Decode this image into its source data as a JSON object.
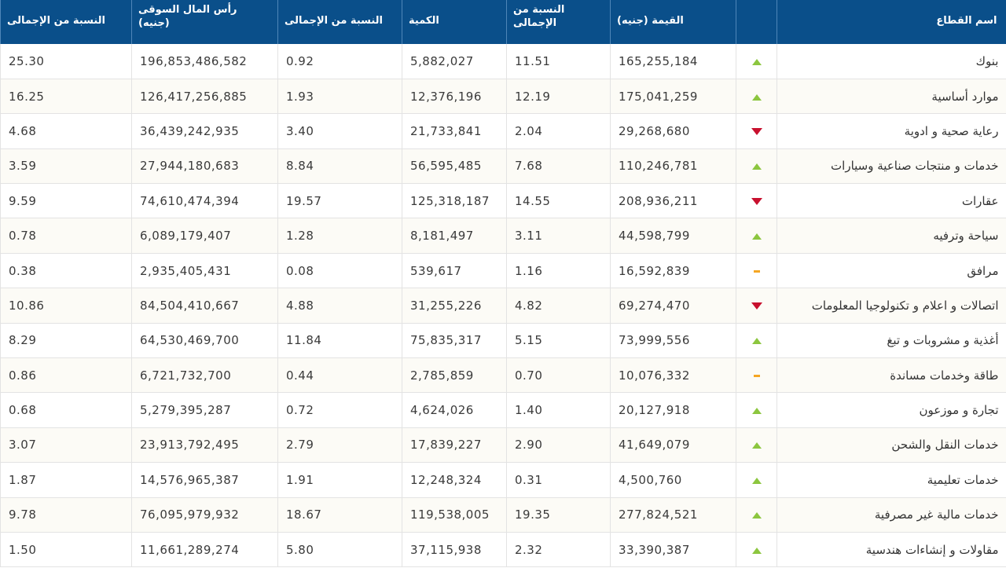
{
  "colors": {
    "header_bg": "#0a4f8a",
    "up": "#8cc63f",
    "down": "#c8102e",
    "flat": "#f5a623"
  },
  "headers": {
    "sector_name": "اسم القطاع",
    "indicator": "",
    "value": "القيمة (جنيه)",
    "value_pct": "النسبة من\nالإجمالى",
    "quantity": "الكمية",
    "quantity_pct": "النسبة من الإجمالى",
    "market_cap": "رأس المال السوقى\n(جنيه)",
    "market_cap_pct": "النسبة من الإجمالى"
  },
  "rows": [
    {
      "name": "بنوك",
      "trend": "up",
      "value": "165,255,184",
      "value_pct": "11.51",
      "quantity": "5,882,027",
      "quantity_pct": "0.92",
      "market_cap": "196,853,486,582",
      "market_cap_pct": "25.30"
    },
    {
      "name": "موارد أساسية",
      "trend": "up",
      "value": "175,041,259",
      "value_pct": "12.19",
      "quantity": "12,376,196",
      "quantity_pct": "1.93",
      "market_cap": "126,417,256,885",
      "market_cap_pct": "16.25"
    },
    {
      "name": "رعاية صحية و ادوية",
      "trend": "down",
      "value": "29,268,680",
      "value_pct": "2.04",
      "quantity": "21,733,841",
      "quantity_pct": "3.40",
      "market_cap": "36,439,242,935",
      "market_cap_pct": "4.68"
    },
    {
      "name": "خدمات و منتجات صناعية وسيارات",
      "trend": "up",
      "value": "110,246,781",
      "value_pct": "7.68",
      "quantity": "56,595,485",
      "quantity_pct": "8.84",
      "market_cap": "27,944,180,683",
      "market_cap_pct": "3.59"
    },
    {
      "name": "عقارات",
      "trend": "down",
      "value": "208,936,211",
      "value_pct": "14.55",
      "quantity": "125,318,187",
      "quantity_pct": "19.57",
      "market_cap": "74,610,474,394",
      "market_cap_pct": "9.59"
    },
    {
      "name": "سياحة وترفيه",
      "trend": "up",
      "value": "44,598,799",
      "value_pct": "3.11",
      "quantity": "8,181,497",
      "quantity_pct": "1.28",
      "market_cap": "6,089,179,407",
      "market_cap_pct": "0.78"
    },
    {
      "name": "مرافق",
      "trend": "flat",
      "value": "16,592,839",
      "value_pct": "1.16",
      "quantity": "539,617",
      "quantity_pct": "0.08",
      "market_cap": "2,935,405,431",
      "market_cap_pct": "0.38"
    },
    {
      "name": "اتصالات و اعلام و تكنولوجيا المعلومات",
      "trend": "down",
      "value": "69,274,470",
      "value_pct": "4.82",
      "quantity": "31,255,226",
      "quantity_pct": "4.88",
      "market_cap": "84,504,410,667",
      "market_cap_pct": "10.86"
    },
    {
      "name": "أغذية و مشروبات و تبغ",
      "trend": "up",
      "value": "73,999,556",
      "value_pct": "5.15",
      "quantity": "75,835,317",
      "quantity_pct": "11.84",
      "market_cap": "64,530,469,700",
      "market_cap_pct": "8.29"
    },
    {
      "name": "طاقة وخدمات مساندة",
      "trend": "flat",
      "value": "10,076,332",
      "value_pct": "0.70",
      "quantity": "2,785,859",
      "quantity_pct": "0.44",
      "market_cap": "6,721,732,700",
      "market_cap_pct": "0.86"
    },
    {
      "name": "تجارة و موزعون",
      "trend": "up",
      "value": "20,127,918",
      "value_pct": "1.40",
      "quantity": "4,624,026",
      "quantity_pct": "0.72",
      "market_cap": "5,279,395,287",
      "market_cap_pct": "0.68"
    },
    {
      "name": "خدمات النقل والشحن",
      "trend": "up",
      "value": "41,649,079",
      "value_pct": "2.90",
      "quantity": "17,839,227",
      "quantity_pct": "2.79",
      "market_cap": "23,913,792,495",
      "market_cap_pct": "3.07"
    },
    {
      "name": "خدمات تعليمية",
      "trend": "up",
      "value": "4,500,760",
      "value_pct": "0.31",
      "quantity": "12,248,324",
      "quantity_pct": "1.91",
      "market_cap": "14,576,965,387",
      "market_cap_pct": "1.87"
    },
    {
      "name": "خدمات مالية غير مصرفية",
      "trend": "up",
      "value": "277,824,521",
      "value_pct": "19.35",
      "quantity": "119,538,005",
      "quantity_pct": "18.67",
      "market_cap": "76,095,979,932",
      "market_cap_pct": "9.78"
    },
    {
      "name": "مقاولات و إنشاءات هندسية",
      "trend": "up",
      "value": "33,390,387",
      "value_pct": "2.32",
      "quantity": "37,115,938",
      "quantity_pct": "5.80",
      "market_cap": "11,661,289,274",
      "market_cap_pct": "1.50"
    }
  ]
}
